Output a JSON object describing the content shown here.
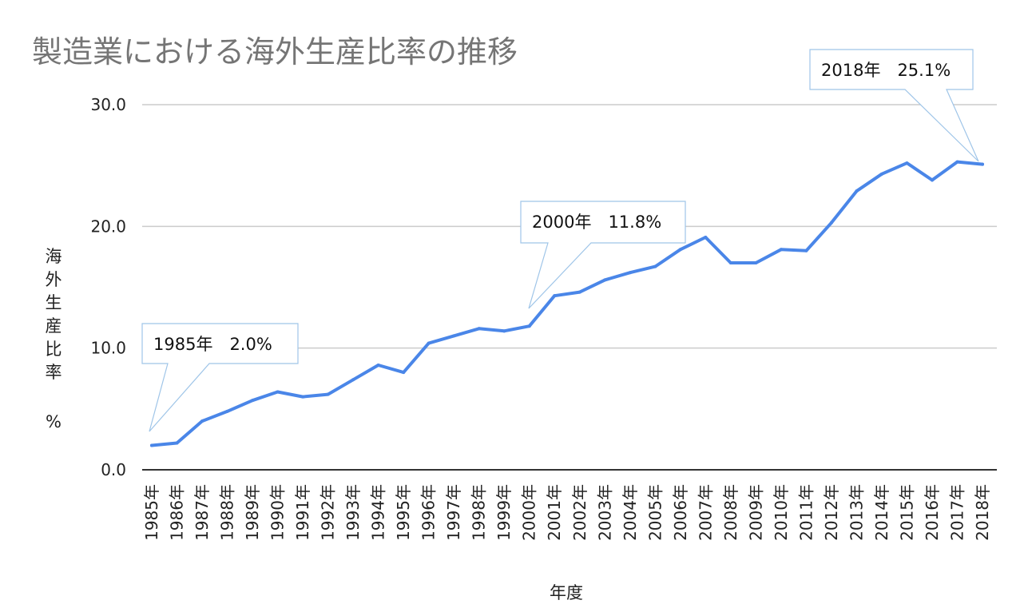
{
  "chart_data": {
    "type": "line",
    "title": "製造業における海外生産比率の推移",
    "xlabel": "年度",
    "ylabel_chars": [
      "海",
      "外",
      "生",
      "産",
      "比",
      "率"
    ],
    "ylabel_unit": "%",
    "ylim": [
      0,
      30
    ],
    "yticks": [
      "0.0",
      "10.0",
      "20.0",
      "30.0"
    ],
    "ytick_values": [
      0,
      10,
      20,
      30
    ],
    "grid": true,
    "categories": [
      "1985年",
      "1986年",
      "1987年",
      "1988年",
      "1989年",
      "1990年",
      "1991年",
      "1992年",
      "1993年",
      "1994年",
      "1995年",
      "1996年",
      "1997年",
      "1998年",
      "1999年",
      "2000年",
      "2001年",
      "2002年",
      "2003年",
      "2004年",
      "2005年",
      "2006年",
      "2007年",
      "2008年",
      "2009年",
      "2010年",
      "2011年",
      "2012年",
      "2013年",
      "2014年",
      "2015年",
      "2016年",
      "2017年",
      "2018年"
    ],
    "series": [
      {
        "values": [
          2.0,
          2.2,
          4.0,
          4.8,
          5.7,
          6.4,
          6.0,
          6.2,
          7.4,
          8.6,
          8.0,
          10.4,
          11.0,
          11.6,
          11.4,
          11.8,
          14.3,
          14.6,
          15.6,
          16.2,
          16.7,
          18.1,
          19.1,
          17.0,
          17.0,
          18.1,
          18.0,
          20.3,
          22.9,
          24.3,
          25.2,
          23.8,
          25.3,
          25.1
        ],
        "color": "#4a86e8"
      }
    ],
    "annotations": [
      {
        "label": "1985年　2.0%",
        "category": "1985年",
        "value": 2.0
      },
      {
        "label": "2000年　11.8%",
        "category": "2000年",
        "value": 11.8
      },
      {
        "label": "2018年　25.1%",
        "category": "2018年",
        "value": 25.1
      }
    ]
  }
}
